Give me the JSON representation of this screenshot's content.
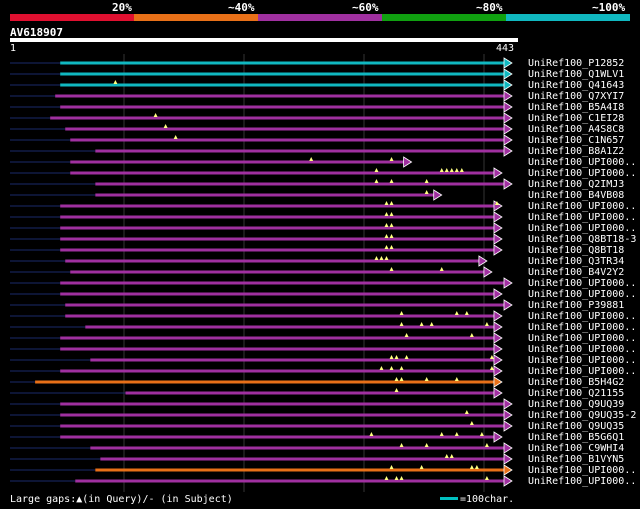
{
  "legend": {
    "labels": [
      "20%",
      "~40%",
      "~60%",
      "~80%",
      "~100%"
    ],
    "colors": [
      "#e01030",
      "#e87018",
      "#a030a0",
      "#10a010",
      "#10b8c0"
    ]
  },
  "query": {
    "name": "AV618907",
    "start": "1",
    "end": "443"
  },
  "hits": [
    {
      "label": "UniRef100_P12852",
      "color": "#10b8c0",
      "qs": 0.1,
      "qe": 1.0,
      "marks": []
    },
    {
      "label": "UniRef100_Q1WLV1",
      "color": "#10b8c0",
      "qs": 0.1,
      "qe": 1.0,
      "marks": []
    },
    {
      "label": "UniRef100_Q41643",
      "color": "#10b8c0",
      "qs": 0.1,
      "qe": 1.0,
      "marks": [
        0.21
      ]
    },
    {
      "label": "UniRef100_Q7XYI7",
      "color": "#a030a0",
      "qs": 0.09,
      "qe": 1.0,
      "marks": []
    },
    {
      "label": "UniRef100_B5A4I8",
      "color": "#a030a0",
      "qs": 0.1,
      "qe": 1.0,
      "marks": []
    },
    {
      "label": "UniRef100_C1EI28",
      "color": "#a030a0",
      "qs": 0.08,
      "qe": 1.0,
      "marks": [
        0.29
      ]
    },
    {
      "label": "UniRef100_A4S8C8",
      "color": "#a030a0",
      "qs": 0.11,
      "qe": 1.0,
      "marks": [
        0.31
      ]
    },
    {
      "label": "UniRef100_C1N657",
      "color": "#a030a0",
      "qs": 0.12,
      "qe": 1.0,
      "marks": [
        0.33
      ]
    },
    {
      "label": "UniRef100_B8A1Z2",
      "color": "#a030a0",
      "qs": 0.17,
      "qe": 1.0,
      "marks": []
    },
    {
      "label": "UniRef100_UPI000..",
      "color": "#a030a0",
      "qs": 0.12,
      "qe": 0.8,
      "marks": [
        0.6,
        0.76
      ]
    },
    {
      "label": "UniRef100_UPI000..",
      "color": "#a030a0",
      "qs": 0.12,
      "qe": 0.98,
      "marks": [
        0.73,
        0.86,
        0.87,
        0.88,
        0.89,
        0.9
      ]
    },
    {
      "label": "UniRef100_Q2IMJ3",
      "color": "#a030a0",
      "qs": 0.17,
      "qe": 1.0,
      "marks": [
        0.73,
        0.76,
        0.83
      ]
    },
    {
      "label": "UniRef100_B4VB08",
      "color": "#a030a0",
      "qs": 0.17,
      "qe": 0.86,
      "marks": [
        0.83
      ]
    },
    {
      "label": "UniRef100_UPI000..",
      "color": "#a030a0",
      "qs": 0.1,
      "qe": 0.98,
      "marks": [
        0.75,
        0.76,
        0.97
      ]
    },
    {
      "label": "UniRef100_UPI000..",
      "color": "#a030a0",
      "qs": 0.1,
      "qe": 0.98,
      "marks": [
        0.75,
        0.76
      ]
    },
    {
      "label": "UniRef100_UPI000..",
      "color": "#a030a0",
      "qs": 0.1,
      "qe": 0.98,
      "marks": [
        0.75,
        0.76
      ]
    },
    {
      "label": "UniRef100_Q8BT18-3",
      "color": "#a030a0",
      "qs": 0.1,
      "qe": 0.98,
      "marks": [
        0.75,
        0.76
      ]
    },
    {
      "label": "UniRef100_Q8BT18",
      "color": "#a030a0",
      "qs": 0.1,
      "qe": 0.98,
      "marks": [
        0.75,
        0.76
      ]
    },
    {
      "label": "UniRef100_Q3TR34",
      "color": "#a030a0",
      "qs": 0.11,
      "qe": 0.95,
      "marks": [
        0.73,
        0.74,
        0.75
      ]
    },
    {
      "label": "UniRef100_B4V2Y2",
      "color": "#a030a0",
      "qs": 0.12,
      "qe": 0.96,
      "marks": [
        0.76,
        0.86
      ]
    },
    {
      "label": "UniRef100_UPI000..",
      "color": "#a030a0",
      "qs": 0.1,
      "qe": 1.0,
      "marks": []
    },
    {
      "label": "UniRef100_UPI000..",
      "color": "#a030a0",
      "qs": 0.1,
      "qe": 0.98,
      "marks": []
    },
    {
      "label": "UniRef100_P39881",
      "color": "#a030a0",
      "qs": 0.11,
      "qe": 1.0,
      "marks": []
    },
    {
      "label": "UniRef100_UPI000..",
      "color": "#a030a0",
      "qs": 0.11,
      "qe": 0.98,
      "marks": [
        0.78,
        0.89,
        0.91
      ]
    },
    {
      "label": "UniRef100_UPI000..",
      "color": "#a030a0",
      "qs": 0.15,
      "qe": 0.98,
      "marks": [
        0.78,
        0.82,
        0.84,
        0.95
      ]
    },
    {
      "label": "UniRef100_UPI000..",
      "color": "#a030a0",
      "qs": 0.1,
      "qe": 0.98,
      "marks": [
        0.79,
        0.92
      ]
    },
    {
      "label": "UniRef100_UPI000..",
      "color": "#a030a0",
      "qs": 0.1,
      "qe": 0.98,
      "marks": []
    },
    {
      "label": "UniRef100_UPI000..",
      "color": "#a030a0",
      "qs": 0.16,
      "qe": 0.98,
      "marks": [
        0.76,
        0.77,
        0.79,
        0.96
      ]
    },
    {
      "label": "UniRef100_UPI000..",
      "color": "#a030a0",
      "qs": 0.1,
      "qe": 0.98,
      "marks": [
        0.74,
        0.76,
        0.78,
        0.96
      ]
    },
    {
      "label": "UniRef100_B5H4G2",
      "color": "#e87018",
      "qs": 0.05,
      "qe": 0.98,
      "marks": [
        0.77,
        0.78,
        0.83,
        0.89
      ]
    },
    {
      "label": "UniRef100_Q21155",
      "color": "#a030a0",
      "qs": 0.23,
      "qe": 0.98,
      "marks": [
        0.77
      ]
    },
    {
      "label": "UniRef100_Q9UQ39",
      "color": "#a030a0",
      "qs": 0.1,
      "qe": 1.0,
      "marks": []
    },
    {
      "label": "UniRef100_Q9UQ35-2",
      "color": "#a030a0",
      "qs": 0.1,
      "qe": 1.0,
      "marks": [
        0.91
      ]
    },
    {
      "label": "UniRef100_Q9UQ35",
      "color": "#a030a0",
      "qs": 0.1,
      "qe": 1.0,
      "marks": [
        0.92
      ]
    },
    {
      "label": "UniRef100_B5G6Q1",
      "color": "#a030a0",
      "qs": 0.1,
      "qe": 0.98,
      "marks": [
        0.72,
        0.86,
        0.89,
        0.94
      ]
    },
    {
      "label": "UniRef100_C9WHI4",
      "color": "#a030a0",
      "qs": 0.16,
      "qe": 1.0,
      "marks": [
        0.78,
        0.83,
        0.95
      ]
    },
    {
      "label": "UniRef100_B1VYN5",
      "color": "#a030a0",
      "qs": 0.18,
      "qe": 1.0,
      "marks": [
        0.87,
        0.88
      ]
    },
    {
      "label": "UniRef100_UPI000..",
      "color": "#e87018",
      "qs": 0.17,
      "qe": 1.0,
      "marks": [
        0.76,
        0.82,
        0.92,
        0.93
      ]
    },
    {
      "label": "UniRef100_UPI000..",
      "color": "#a030a0",
      "qs": 0.13,
      "qe": 1.0,
      "marks": [
        0.75,
        0.77,
        0.78,
        0.95
      ]
    }
  ],
  "footer": {
    "gaps_text": "Large gaps:▲(in Query)/- (in Subject)",
    "scale_text": "=100char."
  }
}
